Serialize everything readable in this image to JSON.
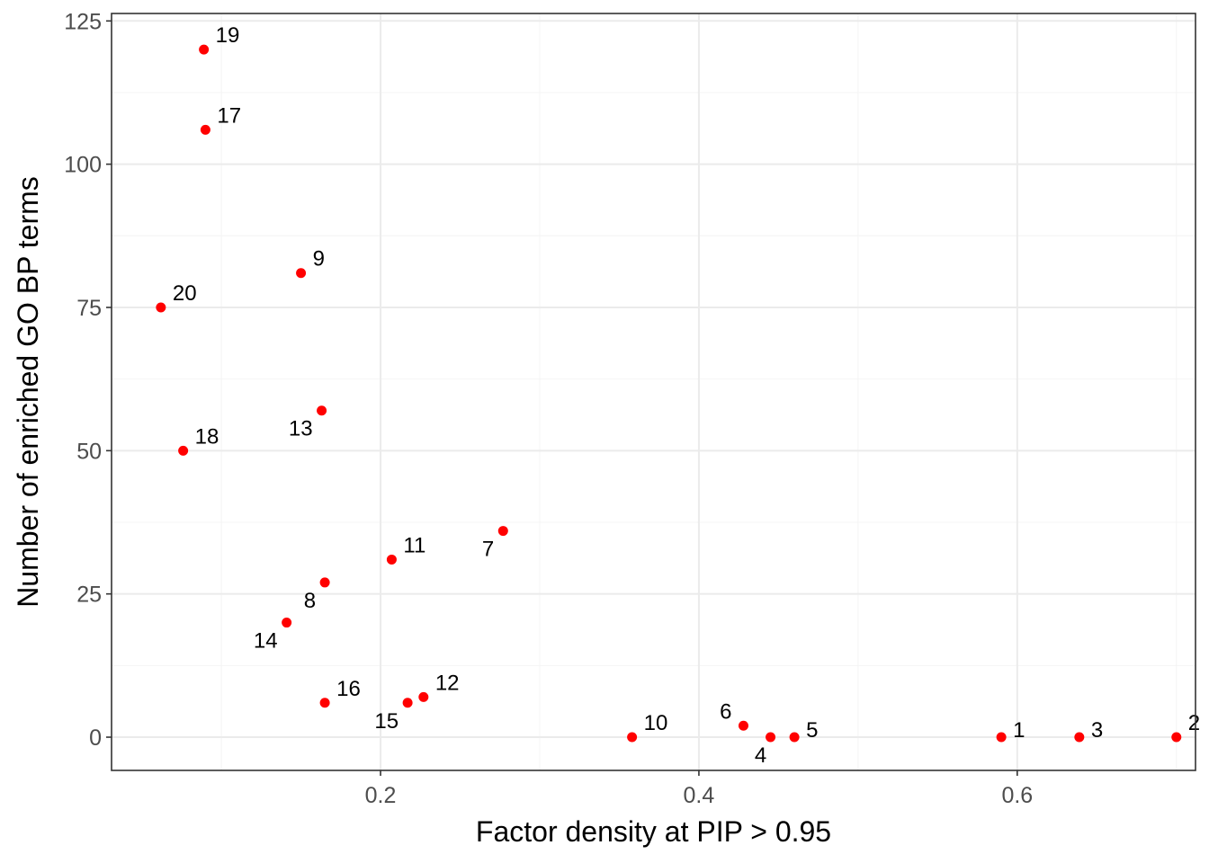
{
  "chart_data": {
    "type": "scatter",
    "title": "",
    "xlabel": "Factor density at PIP > 0.95",
    "ylabel": "Number of enriched GO BP terms",
    "xlim": [
      0.031,
      0.712
    ],
    "ylim": [
      -5.8,
      126.3
    ],
    "x_ticks": [
      0.2,
      0.4,
      0.6
    ],
    "x_tick_labels": [
      "0.2",
      "0.4",
      "0.6"
    ],
    "y_ticks": [
      0,
      25,
      50,
      75,
      100,
      125
    ],
    "y_tick_labels": [
      "0",
      "25",
      "50",
      "75",
      "100",
      "125"
    ],
    "grid": true,
    "legend": "none",
    "point_color": "#ff0000",
    "points": [
      {
        "label": "1",
        "x": 0.59,
        "y": 0,
        "label_pos": "right"
      },
      {
        "label": "2",
        "x": 0.7,
        "y": 0,
        "label_pos": "upper-right"
      },
      {
        "label": "3",
        "x": 0.639,
        "y": 0,
        "label_pos": "right"
      },
      {
        "label": "4",
        "x": 0.445,
        "y": 0,
        "label_pos": "below-left"
      },
      {
        "label": "5",
        "x": 0.46,
        "y": 0,
        "label_pos": "right"
      },
      {
        "label": "6",
        "x": 0.428,
        "y": 2,
        "label_pos": "upper-left"
      },
      {
        "label": "7",
        "x": 0.277,
        "y": 36,
        "label_pos": "lower-left"
      },
      {
        "label": "8",
        "x": 0.165,
        "y": 27,
        "label_pos": "lower-left"
      },
      {
        "label": "9",
        "x": 0.15,
        "y": 81,
        "label_pos": "upper-right"
      },
      {
        "label": "10",
        "x": 0.358,
        "y": 0,
        "label_pos": "upper-right"
      },
      {
        "label": "11",
        "x": 0.207,
        "y": 31,
        "label_pos": "upper-right"
      },
      {
        "label": "12",
        "x": 0.227,
        "y": 7,
        "label_pos": "upper-right"
      },
      {
        "label": "13",
        "x": 0.163,
        "y": 57,
        "label_pos": "lower-left"
      },
      {
        "label": "14",
        "x": 0.141,
        "y": 20,
        "label_pos": "lower-left"
      },
      {
        "label": "15",
        "x": 0.217,
        "y": 6,
        "label_pos": "lower-left"
      },
      {
        "label": "16",
        "x": 0.165,
        "y": 6,
        "label_pos": "upper-right"
      },
      {
        "label": "17",
        "x": 0.09,
        "y": 106,
        "label_pos": "upper-right"
      },
      {
        "label": "18",
        "x": 0.076,
        "y": 50,
        "label_pos": "upper-right"
      },
      {
        "label": "19",
        "x": 0.089,
        "y": 120,
        "label_pos": "upper-right"
      },
      {
        "label": "20",
        "x": 0.062,
        "y": 75,
        "label_pos": "upper-right"
      }
    ]
  }
}
